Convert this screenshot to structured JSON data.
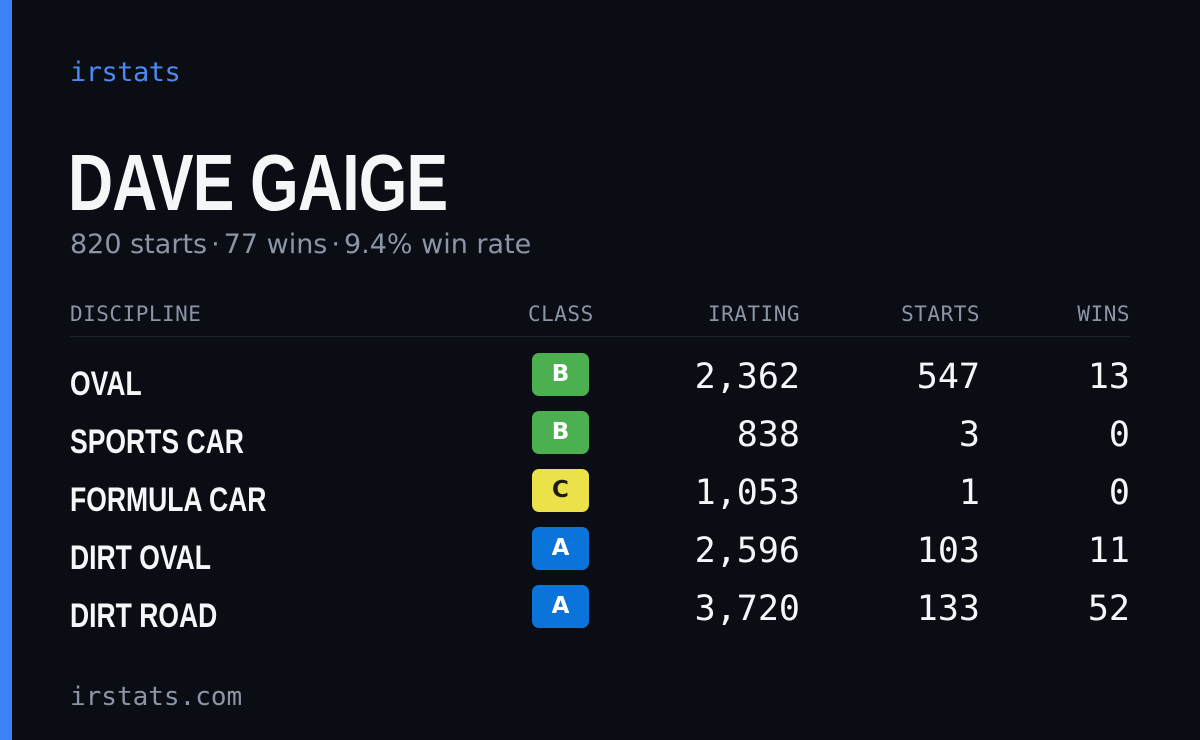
{
  "brand": "irstats",
  "driver": {
    "name": "DAVE GAIGE",
    "summary": {
      "starts": "820 starts",
      "wins": "77 wins",
      "win_rate": "9.4% win rate",
      "separator": "·"
    }
  },
  "colors": {
    "accent": "#3b82f6",
    "class_a": "#0a74da",
    "class_b": "#4caf50",
    "class_c": "#ebe24a"
  },
  "table": {
    "headers": {
      "discipline": "DISCIPLINE",
      "class": "CLASS",
      "irating": "IRATING",
      "starts": "STARTS",
      "wins": "WINS"
    },
    "rows": [
      {
        "discipline": "OVAL",
        "class": "B",
        "class_color": "#4caf50",
        "class_text_color": "#ffffff",
        "irating": "2,362",
        "starts": "547",
        "wins": "13"
      },
      {
        "discipline": "SPORTS CAR",
        "class": "B",
        "class_color": "#4caf50",
        "class_text_color": "#ffffff",
        "irating": "838",
        "starts": "3",
        "wins": "0"
      },
      {
        "discipline": "FORMULA CAR",
        "class": "C",
        "class_color": "#ebe24a",
        "class_text_color": "#1c1c1c",
        "irating": "1,053",
        "starts": "1",
        "wins": "0"
      },
      {
        "discipline": "DIRT OVAL",
        "class": "A",
        "class_color": "#0a74da",
        "class_text_color": "#ffffff",
        "irating": "2,596",
        "starts": "103",
        "wins": "11"
      },
      {
        "discipline": "DIRT ROAD",
        "class": "A",
        "class_color": "#0a74da",
        "class_text_color": "#ffffff",
        "irating": "3,720",
        "starts": "133",
        "wins": "52"
      }
    ]
  },
  "footer": "irstats.com"
}
